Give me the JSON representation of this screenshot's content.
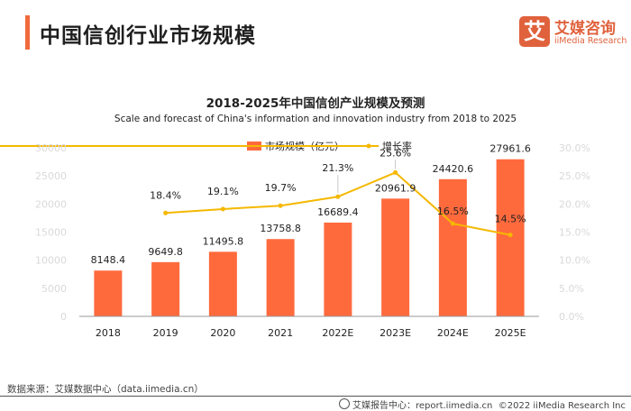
{
  "header": {
    "title": "中国信创行业市场规模",
    "logo_glyph": "艾",
    "logo_cn": "艾媒咨询",
    "logo_en": "iiMedia Research"
  },
  "colors": {
    "accent": "#f06a3c",
    "bar": "#ff6a3d",
    "line": "#f5b800",
    "axis_text": "#d9d9d9"
  },
  "chart_data": {
    "type": "bar",
    "title": "2018-2025年中国信创产业规模及预测",
    "subtitle": "Scale and forecast of China's information and innovation industry from 2018 to 2025",
    "categories": [
      "2018",
      "2019",
      "2020",
      "2021",
      "2022E",
      "2023E",
      "2024E",
      "2025E"
    ],
    "series": [
      {
        "name": "市场规模（亿元）",
        "type": "bar",
        "axis": "left",
        "values": [
          8148.4,
          9649.8,
          11495.8,
          13758.8,
          16689.4,
          20961.9,
          24420.6,
          27961.6
        ],
        "labels": [
          "8148.4",
          "9649.8",
          "11495.8",
          "13758.8",
          "16689.4",
          "20961.9",
          "24420.6",
          "27961.6"
        ]
      },
      {
        "name": "增长率",
        "type": "line",
        "axis": "right",
        "values": [
          null,
          18.4,
          19.1,
          19.7,
          21.3,
          25.6,
          16.5,
          14.5
        ],
        "labels": [
          null,
          "18.4%",
          "19.1%",
          "19.7%",
          "21.3%",
          "25.6%",
          "16.5%",
          "14.5%"
        ]
      }
    ],
    "y_left": {
      "min": 0,
      "max": 30000,
      "ticks": [
        "0",
        "5000",
        "10000",
        "15000",
        "20000",
        "25000",
        "30000"
      ]
    },
    "y_right": {
      "min": 0,
      "max": 30,
      "ticks": [
        "0.0%",
        "5.0%",
        "10.0%",
        "15.0%",
        "20.0%",
        "25.0%",
        "30.0%"
      ]
    },
    "xlabel": "",
    "ylabel": "",
    "grid": false,
    "legend": "top-center"
  },
  "footer": {
    "source": "数据来源：艾媒数据中心（data.iimedia.cn）",
    "report_center": "艾媒报告中心：report.iimedia.cn",
    "copyright": "©2022  iiMedia Research  Inc"
  }
}
